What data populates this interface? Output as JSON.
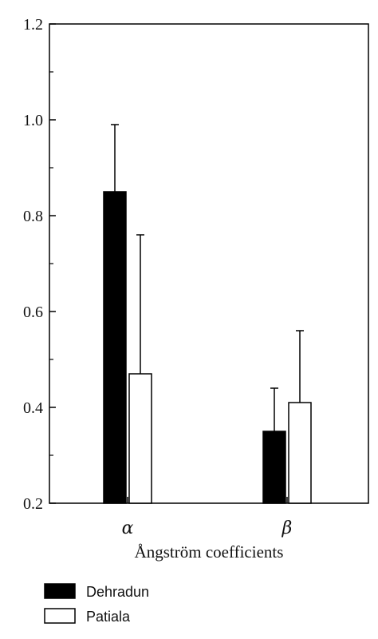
{
  "chart_data": {
    "type": "bar",
    "title": "",
    "xlabel": "Ångström coefficients",
    "ylabel": "",
    "ylim": [
      0.2,
      1.2
    ],
    "yticks": [
      0.2,
      0.4,
      0.6,
      0.8,
      1.0,
      1.2
    ],
    "ytick_labels": [
      "0.2",
      "0.4",
      "0.6",
      "0.8",
      "1.0",
      "1.2"
    ],
    "categories": [
      "α",
      "β"
    ],
    "series": [
      {
        "name": "Dehradun",
        "values": [
          0.85,
          0.35
        ],
        "errors": [
          0.14,
          0.09
        ],
        "color": "#000000"
      },
      {
        "name": "Patiala",
        "values": [
          0.47,
          0.41
        ],
        "errors": [
          0.29,
          0.15
        ],
        "color": "#ffffff"
      }
    ],
    "grid": false,
    "legend": "bottom-left"
  }
}
